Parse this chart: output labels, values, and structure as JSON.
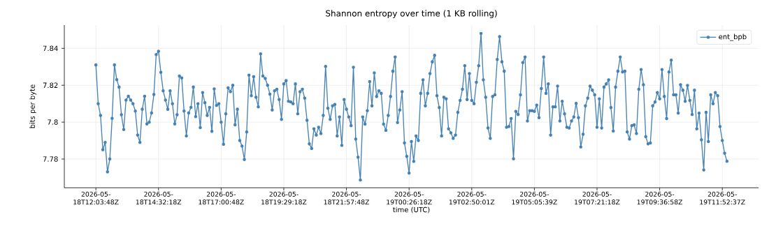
{
  "chart_data": {
    "type": "line",
    "title": "Shannon entropy over time (1 KB rolling)",
    "xlabel": "time (UTC)",
    "ylabel": "bits per byte",
    "categories": [
      "2026-05-18T12:03:48Z",
      null,
      null,
      null,
      null,
      null,
      null,
      null,
      null,
      null,
      null,
      null,
      null,
      null,
      null,
      null,
      null,
      null,
      null,
      null,
      null,
      null,
      null,
      null,
      null,
      null,
      null,
      "2026-05-18T14:32:18Z",
      null,
      null,
      null,
      null,
      null,
      null,
      null,
      null,
      null,
      null,
      null,
      null,
      null,
      null,
      null,
      null,
      null,
      null,
      null,
      null,
      null,
      null,
      null,
      null,
      null,
      null,
      "2026-05-18T17:00:48Z",
      null,
      null,
      null,
      null,
      null,
      null,
      null,
      null,
      null,
      null,
      null,
      null,
      null,
      null,
      null,
      null,
      null,
      null,
      null,
      null,
      null,
      null,
      null,
      null,
      null,
      null,
      "2026-05-18T19:29:18Z",
      null,
      null,
      null,
      null,
      null,
      null,
      null,
      null,
      null,
      null,
      null,
      null,
      null,
      null,
      null,
      null,
      null,
      null,
      null,
      null,
      null,
      null,
      null,
      null,
      null,
      null,
      "2026-05-18T21:57:48Z",
      null,
      null,
      null,
      null,
      null,
      null,
      null,
      null,
      null,
      null,
      null,
      null,
      null,
      null,
      null,
      null,
      null,
      null,
      null,
      null,
      null,
      null,
      null,
      null,
      null,
      null,
      "2026-05-19T00:26:18Z",
      null,
      null,
      null,
      null,
      null,
      null,
      null,
      null,
      null,
      null,
      null,
      null,
      null,
      null,
      null,
      null,
      null,
      null,
      null,
      null,
      null,
      null,
      null,
      null,
      null,
      null,
      "2026-05-19T02:50:01Z",
      null,
      null,
      null,
      null,
      null,
      null,
      null,
      null,
      null,
      null,
      null,
      null,
      null,
      null,
      null,
      null,
      null,
      null,
      null,
      null,
      null,
      null,
      null,
      null,
      null,
      null,
      "2026-05-19T05:05:39Z",
      null,
      null,
      null,
      null,
      null,
      null,
      null,
      null,
      null,
      null,
      null,
      null,
      null,
      null,
      null,
      null,
      null,
      null,
      null,
      null,
      null,
      null,
      null,
      null,
      null,
      null,
      "2026-05-19T07:21:18Z",
      null,
      null,
      null,
      null,
      null,
      null,
      null,
      null,
      null,
      null,
      null,
      null,
      null,
      null,
      null,
      null,
      null,
      null,
      null,
      null,
      null,
      null,
      null,
      null,
      null,
      null,
      "2026-05-19T09:36:58Z",
      null,
      null,
      null,
      null,
      null,
      null,
      null,
      null,
      null,
      null,
      null,
      null,
      null,
      null,
      null,
      null,
      null,
      null,
      null,
      null,
      null,
      null,
      null,
      null,
      null,
      null,
      "2026-05-19T11:52:37Z",
      null,
      null
    ],
    "series": [
      {
        "name": "ent_bpb",
        "color": "#4682b4",
        "values": [
          7.831,
          7.81,
          7.8036,
          7.785,
          7.789,
          7.773,
          7.78,
          7.802,
          7.831,
          7.823,
          7.819,
          7.804,
          7.796,
          7.812,
          7.814,
          7.812,
          7.81,
          7.806,
          7.793,
          7.789,
          7.807,
          7.814,
          7.799,
          7.8,
          7.805,
          7.815,
          7.8366,
          7.8384,
          7.827,
          7.817,
          7.812,
          7.807,
          7.817,
          7.81,
          7.799,
          7.804,
          7.825,
          7.824,
          7.806,
          7.7925,
          7.805,
          7.808,
          7.819,
          7.803,
          7.81,
          7.797,
          7.816,
          7.8105,
          7.8036,
          7.808,
          7.795,
          7.818,
          7.809,
          7.81,
          7.8,
          7.788,
          7.8045,
          7.8186,
          7.8165,
          7.82,
          7.7985,
          7.807,
          7.79,
          7.787,
          7.7797,
          7.7947,
          7.8255,
          7.8143,
          7.8246,
          7.8135,
          7.8083,
          7.837,
          7.825,
          7.8237,
          7.82,
          7.8152,
          7.8066,
          7.817,
          7.8178,
          7.8122,
          7.8015,
          7.8207,
          7.8225,
          7.8113,
          7.8109,
          7.81,
          7.8207,
          7.8045,
          7.8165,
          7.8178,
          7.813,
          7.801,
          7.7882,
          7.7857,
          7.7964,
          7.793,
          7.7972,
          7.7938,
          7.8036,
          7.8302,
          7.8075,
          7.8015,
          7.8088,
          7.8096,
          7.7925,
          7.8028,
          7.7874,
          7.8122,
          7.807,
          7.8028,
          7.7981,
          7.8297,
          7.7908,
          7.781,
          7.7686,
          7.8028,
          7.7989,
          7.8062,
          7.822,
          7.8088,
          7.8267,
          7.8139,
          7.817,
          7.8156,
          7.7989,
          7.7955,
          7.8036,
          7.8139,
          7.8276,
          7.8353,
          7.7998,
          7.8066,
          7.8165,
          7.7887,
          7.7814,
          7.7724,
          7.7895,
          7.7787,
          7.7925,
          7.79,
          7.8156,
          7.8229,
          7.8088,
          7.8156,
          7.8263,
          7.8327,
          7.8362,
          7.8143,
          7.8079,
          7.7925,
          7.8135,
          7.8126,
          7.7964,
          7.7942,
          7.7912,
          7.793,
          7.8053,
          7.8118,
          7.8178,
          7.8306,
          7.8122,
          7.8263,
          7.8118,
          7.81,
          7.8216,
          7.8306,
          7.8481,
          7.8229,
          7.8135,
          7.7968,
          7.7912,
          7.8139,
          7.8148,
          7.834,
          7.8464,
          7.8327,
          7.8276,
          7.7972,
          7.7976,
          7.8019,
          7.7801,
          7.8058,
          7.8041,
          7.8148,
          7.8323,
          7.8353,
          7.8006,
          7.8062,
          7.8062,
          7.8058,
          7.8092,
          7.8024,
          7.8182,
          7.8353,
          7.8156,
          7.8207,
          7.793,
          7.8083,
          7.8083,
          7.8195,
          7.8006,
          7.8113,
          7.8045,
          7.7972,
          7.7968,
          7.8006,
          7.8028,
          7.8102,
          7.8024,
          7.7865,
          7.7934,
          7.8088,
          7.813,
          7.8195,
          7.8173,
          7.8148,
          7.7972,
          7.8126,
          7.7968,
          7.819,
          7.8207,
          7.8229,
          7.8079,
          7.7951,
          7.819,
          7.8276,
          7.8353,
          7.8272,
          7.8276,
          7.7947,
          7.7908,
          7.7981,
          7.7985,
          7.7938,
          7.8178,
          7.8285,
          7.8203,
          7.7921,
          7.7882,
          7.7887,
          7.8088,
          7.8109,
          7.816,
          7.8126,
          7.8285,
          7.8139,
          7.8019,
          7.8272,
          7.8336,
          7.8148,
          7.8148,
          7.8049,
          7.8203,
          7.8173,
          7.8113,
          7.8199,
          7.8118,
          7.8041,
          7.8173,
          7.7964,
          7.8049,
          7.7904,
          7.7741,
          7.8053,
          7.7895,
          7.8148,
          7.81,
          7.816,
          7.8143,
          7.7976,
          7.79,
          7.7831,
          7.7788
        ]
      }
    ],
    "ylim": [
      7.7644,
      7.8526
    ],
    "yticks": [
      7.78,
      7.8,
      7.82,
      7.84
    ],
    "grid": true,
    "legend": "top right",
    "marker": "circle",
    "line_style": "solid"
  }
}
